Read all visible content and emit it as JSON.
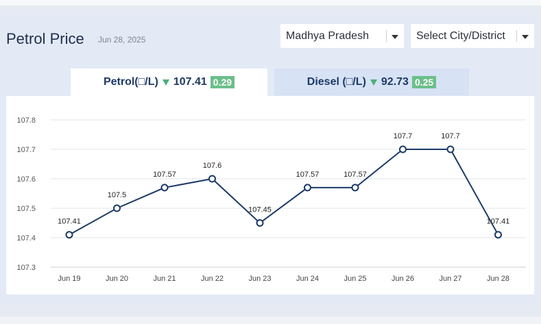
{
  "header": {
    "title": "Petrol Price",
    "date": "Jun 28, 2025"
  },
  "filters": {
    "state": "Madhya Pradesh",
    "city": "Select City/District"
  },
  "tabs": {
    "petrol": {
      "label": "Petrol(□/L)",
      "price": "107.41",
      "change": "0.29",
      "direction": "down",
      "active": true
    },
    "diesel": {
      "label": "Diesel (□/L)",
      "price": "92.73",
      "change": "0.25",
      "direction": "down",
      "active": false
    }
  },
  "colors": {
    "line": "#1a3a66",
    "badge": "#6cbf8a",
    "down_arrow": "#4caf7d",
    "title": "#1d2f4e"
  },
  "chart_data": {
    "type": "line",
    "categories": [
      "Jun 19",
      "Jun 20",
      "Jun 21",
      "Jun 22",
      "Jun 23",
      "Jun 24",
      "Jun 25",
      "Jun 26",
      "Jun 27",
      "Jun 28"
    ],
    "series": [
      {
        "values": [
          107.41,
          107.5,
          107.57,
          107.6,
          107.45,
          107.57,
          107.57,
          107.7,
          107.7,
          107.41
        ]
      }
    ],
    "data_labels": [
      "107.41",
      "107.5",
      "107.57",
      "107.6",
      "107.45",
      "107.57",
      "107.57",
      "107.7",
      "107.7",
      "107.41"
    ],
    "yticks": [
      "107.3",
      "107.4",
      "107.5",
      "107.6",
      "107.7",
      "107.8"
    ],
    "ylim": [
      107.3,
      107.8
    ],
    "grid": true
  }
}
